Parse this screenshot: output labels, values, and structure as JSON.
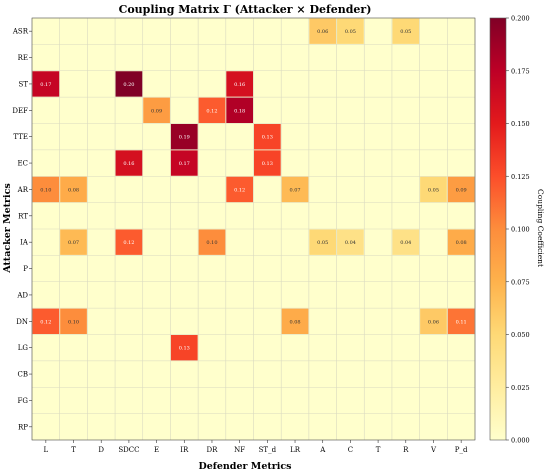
{
  "chart_data": {
    "type": "heatmap",
    "title": "Coupling Matrix Γ (Attacker × Defender)",
    "xlabel": "Defender Metrics",
    "ylabel": "Attacker Metrics",
    "colorbar_label": "Coupling Coefficient",
    "x_categories": [
      "L",
      "T",
      "D",
      "SDCC",
      "E",
      "IR",
      "DR",
      "NF",
      "ST_d",
      "LR",
      "A",
      "C",
      "T",
      "R",
      "V",
      "P_d"
    ],
    "y_categories": [
      "ASR",
      "RE",
      "ST",
      "DEF",
      "TTE",
      "EC",
      "AR",
      "RT",
      "IA",
      "P",
      "AD",
      "DN",
      "LG",
      "CB",
      "FG",
      "RP"
    ],
    "colorbar_range": [
      0.0,
      0.2
    ],
    "colorbar_ticks": [
      "0.000",
      "0.025",
      "0.050",
      "0.075",
      "0.100",
      "0.125",
      "0.150",
      "0.175",
      "0.200"
    ],
    "colormap": [
      "#ffffcc",
      "#ffeda0",
      "#fed976",
      "#feb24c",
      "#fd8d3c",
      "#fc4e2a",
      "#e31a1c",
      "#bd0026",
      "#800026"
    ],
    "cells": [
      {
        "row": 0,
        "col": 10,
        "value": 0.06,
        "label": "0.06"
      },
      {
        "row": 0,
        "col": 11,
        "value": 0.05,
        "label": "0.05"
      },
      {
        "row": 0,
        "col": 13,
        "value": 0.05,
        "label": "0.05"
      },
      {
        "row": 2,
        "col": 0,
        "value": 0.17,
        "label": "0.17"
      },
      {
        "row": 2,
        "col": 3,
        "value": 0.2,
        "label": "0.20"
      },
      {
        "row": 2,
        "col": 7,
        "value": 0.16,
        "label": "0.16"
      },
      {
        "row": 3,
        "col": 4,
        "value": 0.09,
        "label": "0.09"
      },
      {
        "row": 3,
        "col": 6,
        "value": 0.12,
        "label": "0.12"
      },
      {
        "row": 3,
        "col": 7,
        "value": 0.18,
        "label": "0.18"
      },
      {
        "row": 4,
        "col": 5,
        "value": 0.19,
        "label": "0.19"
      },
      {
        "row": 4,
        "col": 8,
        "value": 0.13,
        "label": "0.13"
      },
      {
        "row": 5,
        "col": 3,
        "value": 0.16,
        "label": "0.16"
      },
      {
        "row": 5,
        "col": 5,
        "value": 0.17,
        "label": "0.17"
      },
      {
        "row": 5,
        "col": 8,
        "value": 0.13,
        "label": "0.13"
      },
      {
        "row": 6,
        "col": 0,
        "value": 0.1,
        "label": "0.10"
      },
      {
        "row": 6,
        "col": 1,
        "value": 0.08,
        "label": "0.08"
      },
      {
        "row": 6,
        "col": 7,
        "value": 0.12,
        "label": "0.12"
      },
      {
        "row": 6,
        "col": 9,
        "value": 0.07,
        "label": "0.07"
      },
      {
        "row": 6,
        "col": 14,
        "value": 0.05,
        "label": "0.05"
      },
      {
        "row": 6,
        "col": 15,
        "value": 0.09,
        "label": "0.09"
      },
      {
        "row": 8,
        "col": 1,
        "value": 0.07,
        "label": "0.07"
      },
      {
        "row": 8,
        "col": 3,
        "value": 0.12,
        "label": "0.12"
      },
      {
        "row": 8,
        "col": 6,
        "value": 0.1,
        "label": "0.10"
      },
      {
        "row": 8,
        "col": 10,
        "value": 0.05,
        "label": "0.05"
      },
      {
        "row": 8,
        "col": 11,
        "value": 0.04,
        "label": "0.04"
      },
      {
        "row": 8,
        "col": 13,
        "value": 0.04,
        "label": "0.04"
      },
      {
        "row": 8,
        "col": 15,
        "value": 0.08,
        "label": "0.08"
      },
      {
        "row": 11,
        "col": 0,
        "value": 0.12,
        "label": "0.12"
      },
      {
        "row": 11,
        "col": 1,
        "value": 0.1,
        "label": "0.10"
      },
      {
        "row": 11,
        "col": 9,
        "value": 0.08,
        "label": "0.08"
      },
      {
        "row": 11,
        "col": 14,
        "value": 0.06,
        "label": "0.06"
      },
      {
        "row": 11,
        "col": 15,
        "value": 0.11,
        "label": "0.11"
      },
      {
        "row": 12,
        "col": 5,
        "value": 0.13,
        "label": "0.13"
      }
    ]
  }
}
